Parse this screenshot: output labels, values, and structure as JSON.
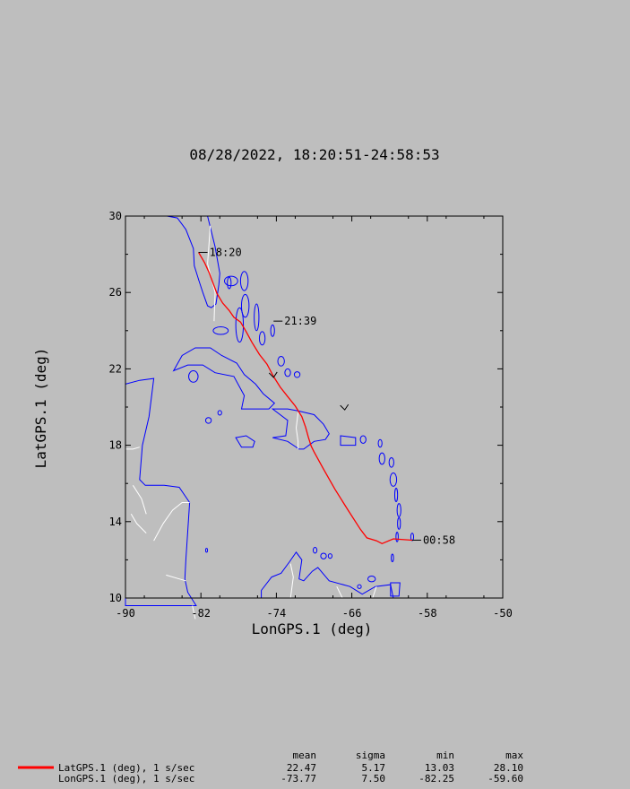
{
  "colors": {
    "background": "#bebebe",
    "track": "#ff0000",
    "coastline": "#0000ff",
    "borders": "#ffffff",
    "axes": "#000000"
  },
  "chart_data": {
    "type": "line",
    "title": "08/28/2022, 18:20:51-24:58:53",
    "xlabel": "LonGPS.1 (deg)",
    "ylabel": "LatGPS.1 (deg)",
    "xlim": [
      -90,
      -50
    ],
    "ylim": [
      10,
      30
    ],
    "xticks": [
      -90,
      -82,
      -74,
      -66,
      -58,
      -50
    ],
    "yticks": [
      10,
      14,
      18,
      22,
      26,
      30
    ],
    "grid": false,
    "series": [
      {
        "name": "LatGPS.1 (deg), 1 s/sec",
        "lon": [
          -82.25,
          -81.6,
          -81.1,
          -80.8,
          -80.3,
          -79.7,
          -79.0,
          -78.5,
          -77.8,
          -77.2,
          -76.6,
          -75.8,
          -75.0,
          -74.3,
          -73.6,
          -72.8,
          -72.0,
          -71.3,
          -70.9,
          -70.6,
          -70.3,
          -70.0,
          -69.0,
          -67.8,
          -66.4,
          -65.1,
          -64.4,
          -63.4,
          -62.8,
          -61.6,
          -59.6
        ],
        "lat": [
          28.1,
          27.55,
          27.0,
          26.6,
          25.95,
          25.45,
          25.05,
          24.7,
          24.45,
          23.95,
          23.4,
          22.75,
          22.25,
          21.6,
          21.05,
          20.55,
          20.05,
          19.5,
          18.95,
          18.4,
          17.95,
          17.65,
          16.75,
          15.7,
          14.6,
          13.6,
          13.15,
          13.0,
          12.85,
          13.1,
          13.03
        ]
      }
    ],
    "time_labels": [
      {
        "text": "18:20",
        "lon": -82.25,
        "lat": 28.1
      },
      {
        "text": "21:39",
        "lon": -74.3,
        "lat": 24.5
      },
      {
        "text": "00:58",
        "lon": -59.6,
        "lat": 13.03
      }
    ],
    "stats": {
      "headers": [
        "mean",
        "sigma",
        "min",
        "max"
      ],
      "rows": [
        {
          "label": "LatGPS.1 (deg), 1 s/sec",
          "values": [
            "22.47",
            "5.17",
            "13.03",
            "28.10"
          ]
        },
        {
          "label": "LonGPS.1 (deg), 1 s/sec",
          "values": [
            "-73.77",
            "7.50",
            "-82.25",
            "-59.60"
          ]
        }
      ]
    }
  }
}
